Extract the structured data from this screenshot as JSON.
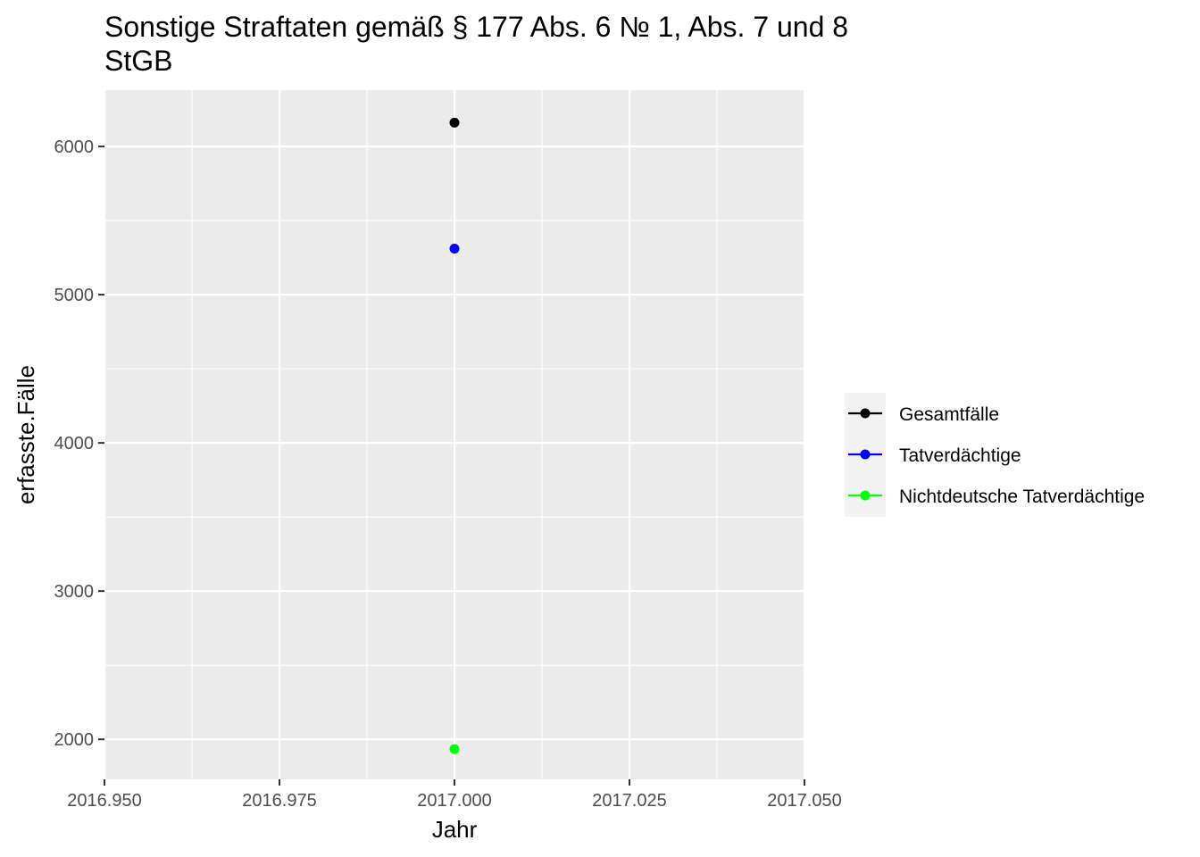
{
  "chart_data": {
    "type": "scatter",
    "title_lines": [
      "Sonstige Straftaten gemäß § 177 Abs. 6 № 1, Abs. 7 und 8",
      "StGB"
    ],
    "xlabel": "Jahr",
    "ylabel": "erfasste.Fälle",
    "xlim": [
      2016.95,
      2017.05
    ],
    "ylim": [
      1730,
      6380
    ],
    "x_ticks": [
      2016.95,
      2016.975,
      2017.0,
      2017.025,
      2017.05
    ],
    "x_tick_labels": [
      "2016.950",
      "2016.975",
      "2017.000",
      "2017.025",
      "2017.050"
    ],
    "y_ticks": [
      2000,
      3000,
      4000,
      5000,
      6000
    ],
    "y_tick_labels": [
      "2000",
      "3000",
      "4000",
      "5000",
      "6000"
    ],
    "grid": true,
    "legend_position": "right",
    "series": [
      {
        "name": "Gesamtfälle",
        "color": "#000000",
        "x": [
          2017.0
        ],
        "y": [
          6161
        ]
      },
      {
        "name": "Tatverdächtige",
        "color": "#0000ff",
        "x": [
          2017.0
        ],
        "y": [
          5311
        ]
      },
      {
        "name": "Nichtdeutsche Tatverdächtige",
        "color": "#00ff00",
        "x": [
          2017.0
        ],
        "y": [
          1934
        ]
      }
    ]
  }
}
